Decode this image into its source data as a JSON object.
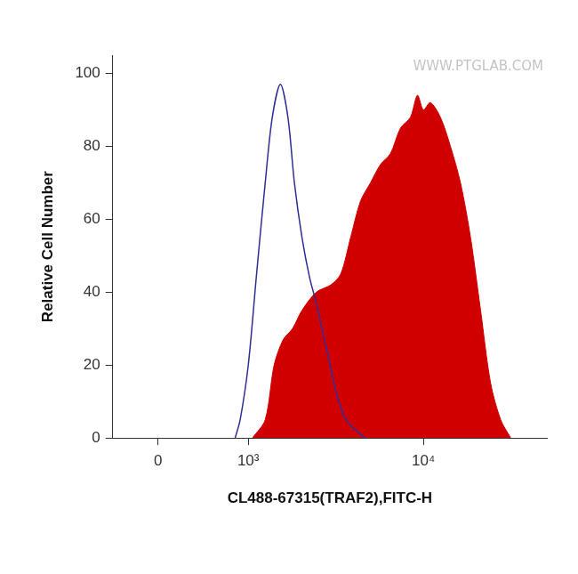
{
  "chart_data": {
    "type": "histogram",
    "watermark": "WWW.PTGLAB.COM",
    "x_label": "CL488-67315(TRAF2),FITC-H",
    "y_label": "Relative Cell Number",
    "xlim": [
      -430,
      47000
    ],
    "xticks": [
      0,
      {
        "value": 1000,
        "label": "10³"
      },
      {
        "value": 10000,
        "label": "10⁴"
      }
    ],
    "ylim": [
      0,
      105
    ],
    "yticks": [
      0,
      20,
      40,
      60,
      80,
      100
    ],
    "grid": false,
    "series": [
      {
        "type": "line",
        "color": "#2e2e96",
        "line_style": "solid",
        "marker": "none",
        "x": [
          810,
          880,
          1000,
          1134,
          1286,
          1422,
          1592,
          1763,
          1924,
          2128,
          2352,
          2568,
          2914,
          3305,
          3750,
          4526,
          4820
        ],
        "values": [
          0,
          5,
          20,
          45,
          70,
          88,
          97,
          88,
          70,
          55,
          44,
          37,
          25,
          13,
          5,
          1,
          0
        ]
      },
      {
        "type": "area",
        "color": "#d10000",
        "line_style": "solid",
        "marker": "none",
        "x": [
          1065,
          1286,
          1459,
          1654,
          1876,
          2128,
          2568,
          3100,
          3518,
          3991,
          4526,
          5134,
          5823,
          6605,
          7492,
          8499,
          9277,
          10000,
          10906,
          12371,
          14033,
          15917,
          18055,
          20480,
          23231,
          26352,
          29891
        ],
        "values": [
          0,
          5,
          20,
          27,
          30,
          35,
          40,
          42,
          45,
          55,
          65,
          70,
          75,
          78,
          85,
          88,
          94,
          90,
          92,
          88,
          80,
          70,
          55,
          35,
          15,
          5,
          0
        ]
      }
    ]
  }
}
